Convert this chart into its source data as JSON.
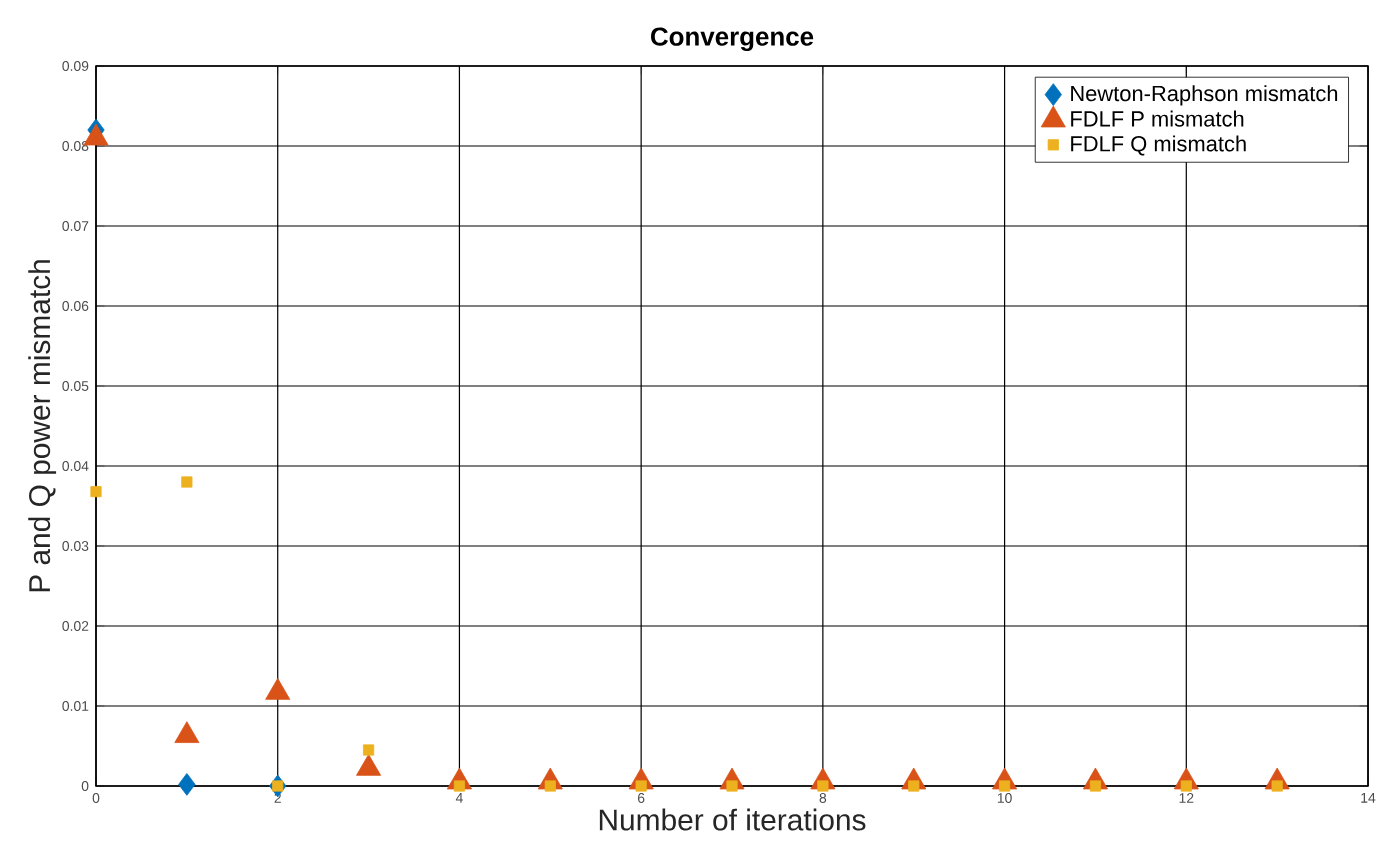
{
  "chart_data": {
    "type": "scatter",
    "title": "Convergence",
    "xlabel": "Number of iterations",
    "ylabel": "P and Q power mismatch",
    "xlim": [
      0,
      14
    ],
    "xticks": [
      0,
      2,
      4,
      6,
      8,
      10,
      12,
      14
    ],
    "ylim": [
      0,
      0.09
    ],
    "yticks": [
      0,
      0.01,
      0.02,
      0.03,
      0.04,
      0.05,
      0.06,
      0.07,
      0.08,
      0.09
    ],
    "grid": true,
    "legend": "top right",
    "series": [
      {
        "name": "Newton-Raphson mismatch",
        "color": "#0072bd",
        "marker": "diamond",
        "x": [
          0,
          1,
          2
        ],
        "values": [
          0.082,
          0.0002,
          0
        ]
      },
      {
        "name": "FDLF P mismatch",
        "color": "#d95319",
        "marker": "triangle",
        "x": [
          0,
          1,
          2,
          3,
          4,
          5,
          6,
          7,
          8,
          9,
          10,
          11,
          12,
          13
        ],
        "values": [
          0.081,
          0.0063,
          0.0117,
          0.0022,
          0.0005,
          0.0005,
          0.0005,
          0.0005,
          0.0005,
          0.0005,
          0.0005,
          0.0005,
          0.0005,
          0.0005
        ]
      },
      {
        "name": "FDLF Q mismatch",
        "color": "#edb120",
        "marker": "square",
        "x": [
          0,
          1,
          2,
          3,
          4,
          5,
          6,
          7,
          8,
          9,
          10,
          11,
          12,
          13
        ],
        "values": [
          0.0368,
          0.038,
          0,
          0.0045,
          0,
          0,
          0,
          0,
          0,
          0,
          0,
          0,
          0,
          0
        ]
      }
    ]
  }
}
